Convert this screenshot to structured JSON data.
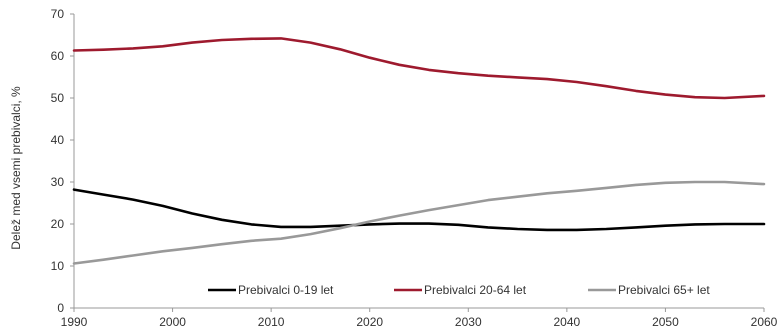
{
  "chart_data": {
    "type": "line",
    "title": "",
    "xlabel": "",
    "ylabel": "Delež med vsemi prebivalci, %",
    "xlim": [
      1990,
      2060
    ],
    "ylim": [
      0,
      70
    ],
    "x_ticks": [
      1990,
      2000,
      2010,
      2020,
      2030,
      2040,
      2050,
      2060
    ],
    "y_ticks": [
      0,
      10,
      20,
      30,
      40,
      50,
      60,
      70
    ],
    "grid": false,
    "legend": "bottom-center",
    "series": [
      {
        "name": "Prebivalci 0-19 let",
        "color": "#000000",
        "points": [
          [
            1990,
            28.2
          ],
          [
            1993,
            27.0
          ],
          [
            1996,
            25.8
          ],
          [
            1999,
            24.3
          ],
          [
            2002,
            22.5
          ],
          [
            2005,
            21.0
          ],
          [
            2008,
            19.9
          ],
          [
            2011,
            19.3
          ],
          [
            2014,
            19.3
          ],
          [
            2017,
            19.6
          ],
          [
            2020,
            19.9
          ],
          [
            2023,
            20.1
          ],
          [
            2026,
            20.1
          ],
          [
            2029,
            19.8
          ],
          [
            2032,
            19.2
          ],
          [
            2035,
            18.8
          ],
          [
            2038,
            18.6
          ],
          [
            2041,
            18.6
          ],
          [
            2044,
            18.8
          ],
          [
            2047,
            19.2
          ],
          [
            2050,
            19.6
          ],
          [
            2053,
            19.9
          ],
          [
            2056,
            20.0
          ],
          [
            2060,
            20.0
          ]
        ]
      },
      {
        "name": "Prebivalci 20-64 let",
        "color": "#9e1a2e",
        "points": [
          [
            1990,
            61.3
          ],
          [
            1993,
            61.5
          ],
          [
            1996,
            61.8
          ],
          [
            1999,
            62.3
          ],
          [
            2002,
            63.2
          ],
          [
            2005,
            63.8
          ],
          [
            2008,
            64.1
          ],
          [
            2011,
            64.2
          ],
          [
            2014,
            63.2
          ],
          [
            2017,
            61.6
          ],
          [
            2020,
            59.6
          ],
          [
            2023,
            57.9
          ],
          [
            2026,
            56.7
          ],
          [
            2029,
            55.9
          ],
          [
            2032,
            55.3
          ],
          [
            2035,
            54.9
          ],
          [
            2038,
            54.5
          ],
          [
            2041,
            53.8
          ],
          [
            2044,
            52.8
          ],
          [
            2047,
            51.7
          ],
          [
            2050,
            50.8
          ],
          [
            2053,
            50.2
          ],
          [
            2056,
            50.0
          ],
          [
            2060,
            50.5
          ]
        ]
      },
      {
        "name": "Prebivalci 65+ let",
        "color": "#999999",
        "points": [
          [
            1990,
            10.6
          ],
          [
            1993,
            11.5
          ],
          [
            1996,
            12.5
          ],
          [
            1999,
            13.5
          ],
          [
            2002,
            14.3
          ],
          [
            2005,
            15.2
          ],
          [
            2008,
            16.0
          ],
          [
            2011,
            16.5
          ],
          [
            2014,
            17.6
          ],
          [
            2017,
            19.0
          ],
          [
            2020,
            20.6
          ],
          [
            2023,
            22.0
          ],
          [
            2026,
            23.3
          ],
          [
            2029,
            24.5
          ],
          [
            2032,
            25.7
          ],
          [
            2035,
            26.5
          ],
          [
            2038,
            27.3
          ],
          [
            2041,
            27.9
          ],
          [
            2044,
            28.6
          ],
          [
            2047,
            29.3
          ],
          [
            2050,
            29.8
          ],
          [
            2053,
            30.0
          ],
          [
            2056,
            30.0
          ],
          [
            2060,
            29.5
          ]
        ]
      }
    ]
  }
}
